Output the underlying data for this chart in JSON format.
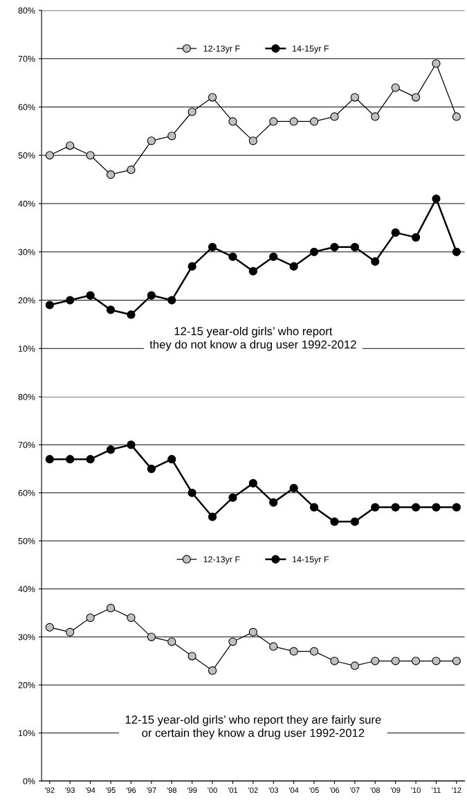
{
  "chart_data": [
    {
      "type": "line",
      "categories": [
        null,
        null,
        null,
        null,
        null,
        null,
        null,
        null,
        null,
        null,
        null,
        null,
        null,
        null,
        null,
        null,
        null,
        null,
        null,
        null,
        null
      ],
      "series": [
        {
          "name": "12-13yr F",
          "color": "#c0c0c0",
          "values": [
            50,
            52,
            50,
            46,
            47,
            53,
            54,
            59,
            62,
            57,
            53,
            57,
            57,
            57,
            58,
            62,
            58,
            64,
            62,
            69,
            58
          ]
        },
        {
          "name": "14-15yr F",
          "color": "#000000",
          "values": [
            19,
            20,
            21,
            18,
            17,
            21,
            20,
            27,
            31,
            29,
            26,
            29,
            27,
            30,
            31,
            31,
            28,
            34,
            33,
            41,
            30
          ]
        }
      ],
      "ylim": [
        0,
        80
      ],
      "yticks": [
        {
          "value": 10,
          "label": "10%"
        },
        {
          "value": 20,
          "label": "20%"
        },
        {
          "value": 30,
          "label": "30%"
        },
        {
          "value": 40,
          "label": "40%"
        },
        {
          "value": 50,
          "label": "50%"
        },
        {
          "value": 60,
          "label": "60%"
        },
        {
          "value": 70,
          "label": "70%"
        },
        {
          "value": 80,
          "label": "80%"
        }
      ],
      "grid": "y",
      "legend": "top",
      "marker": "circle",
      "line_style": "solid",
      "tick_labels": "y",
      "annotations": [
        "12-15 year-old girls’ who report\nthey do not know a drug user 1992-2012"
      ]
    },
    {
      "type": "line",
      "categories": [
        "'92",
        "'93",
        "'94",
        "'95",
        "'96",
        "'97",
        "'98",
        "'99",
        "'00",
        "'01",
        "'02",
        "'03",
        "'04",
        "'05",
        "'06",
        "'07",
        "'08",
        "'09",
        "'10",
        "'11",
        "'12"
      ],
      "series": [
        {
          "name": "12-13yr F",
          "color": "#c0c0c0",
          "values": [
            32,
            31,
            34,
            36,
            34,
            30,
            29,
            26,
            23,
            29,
            31,
            28,
            27,
            27,
            25,
            24,
            25,
            25,
            25,
            25,
            25
          ]
        },
        {
          "name": "14-15yr F",
          "color": "#000000",
          "values": [
            67,
            67,
            67,
            69,
            70,
            65,
            67,
            60,
            55,
            59,
            62,
            58,
            61,
            57,
            54,
            54,
            57,
            57,
            57,
            57,
            57
          ]
        }
      ],
      "ylim": [
        0,
        80
      ],
      "yticks": [
        {
          "value": 0,
          "label": "0%"
        },
        {
          "value": 10,
          "label": "10%"
        },
        {
          "value": 20,
          "label": "20%"
        },
        {
          "value": 30,
          "label": "30%"
        },
        {
          "value": 40,
          "label": "40%"
        },
        {
          "value": 50,
          "label": "50%"
        },
        {
          "value": 60,
          "label": "60%"
        },
        {
          "value": 70,
          "label": "70%"
        },
        {
          "value": 80,
          "label": "80%"
        }
      ],
      "grid": "y",
      "legend": "center",
      "marker": "circle",
      "line_style": "solid",
      "annotations": [
        "12-15 year-old girls’ who report they are fairly sure\nor certain they know a drug user 1992-2012"
      ]
    }
  ]
}
